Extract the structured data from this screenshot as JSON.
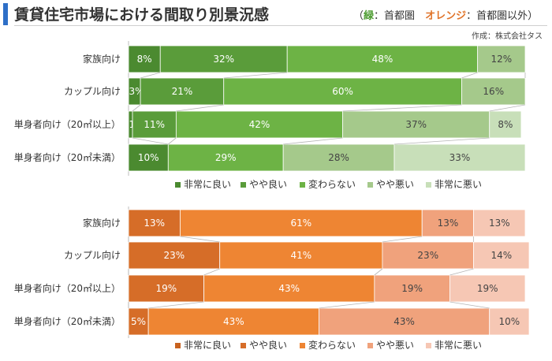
{
  "header": {
    "title": "賃貸住宅市場における間取り別景況感",
    "legend_note_open": "（",
    "legend_green": "緑",
    "legend_green_text": "：首都圏",
    "legend_orange": "オレンジ",
    "legend_orange_text": "：首都圏以外",
    "legend_note_close": "）",
    "credit": "作成：株式会社タス"
  },
  "chart_data": [
    {
      "type": "bar",
      "orientation": "horizontal",
      "stacked": "percent",
      "region": "首都圏",
      "categories": [
        "家族向け",
        "カップル向け",
        "単身者向け（20㎡以上）",
        "単身者向け（20㎡未満）"
      ],
      "series": [
        {
          "name": "非常に良い",
          "values": [
            8,
            3,
            1,
            10
          ],
          "color": "#4b8a30"
        },
        {
          "name": "やや良い",
          "values": [
            32,
            21,
            11,
            0
          ],
          "color": "#5a9c3a"
        },
        {
          "name": "変わらない",
          "values": [
            48,
            60,
            42,
            29
          ],
          "color": "#6db345"
        },
        {
          "name": "やや悪い",
          "values": [
            12,
            16,
            37,
            28
          ],
          "color": "#a5c98b"
        },
        {
          "name": "非常に悪い",
          "values": [
            0,
            0,
            8,
            33
          ],
          "color": "#c8dfb9"
        }
      ],
      "labels": [
        [
          "8%",
          "32%",
          "48%",
          "12%",
          ""
        ],
        [
          "3%",
          "21%",
          "60%",
          "16%",
          ""
        ],
        [
          "1%",
          "11%",
          "42%",
          "37%",
          "8%"
        ],
        [
          "10%",
          "",
          "29%",
          "28%",
          "33%"
        ]
      ],
      "legend": "bottom"
    },
    {
      "type": "bar",
      "orientation": "horizontal",
      "stacked": "percent",
      "region": "首都圏以外",
      "categories": [
        "家族向け",
        "カップル向け",
        "単身者向け（20㎡以上）",
        "単身者向け（20㎡未満）"
      ],
      "series": [
        {
          "name": "非常に良い",
          "values": [
            0,
            0,
            0,
            0
          ],
          "color": "#c8621f"
        },
        {
          "name": "やや良い",
          "values": [
            13,
            23,
            19,
            5
          ],
          "color": "#d66d28"
        },
        {
          "name": "変わらない",
          "values": [
            61,
            41,
            43,
            43
          ],
          "color": "#ee8533"
        },
        {
          "name": "やや悪い",
          "values": [
            13,
            23,
            19,
            43
          ],
          "color": "#f0a27c"
        },
        {
          "name": "非常に悪い",
          "values": [
            13,
            14,
            19,
            10
          ],
          "color": "#f6c7b4"
        }
      ],
      "labels": [
        [
          "",
          "13%",
          "61%",
          "13%",
          "13%"
        ],
        [
          "",
          "23%",
          "41%",
          "23%",
          "14%"
        ],
        [
          "",
          "19%",
          "43%",
          "19%",
          "19%"
        ],
        [
          "",
          "5%",
          "43%",
          "43%",
          "10%"
        ]
      ],
      "legend": "bottom"
    }
  ]
}
